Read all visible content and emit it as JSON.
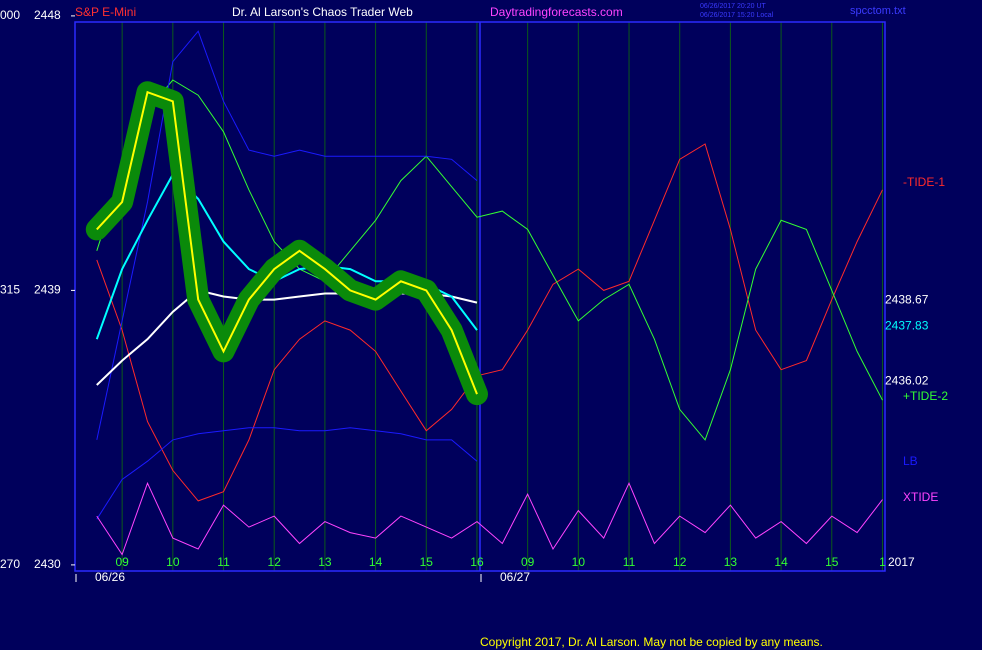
{
  "chart_data": {
    "type": "line",
    "symbol": "S&P E-Mini",
    "title": "Dr. Al Larson's Chaos Trader Web",
    "website": "Daytradingforecasts.com",
    "timestamps": [
      "06/26/2017 20:20 UT",
      "06/26/2017 15:20 Local"
    ],
    "filename": "spcctom.txt",
    "copyright": "Copyright 2017, Dr. Al Larson. May not be copied by any means.",
    "x": [
      -0.5,
      0,
      0.5,
      1,
      1.5,
      2,
      2.5,
      3,
      3.5,
      4,
      4.5,
      5,
      5.5,
      6,
      6.5,
      7,
      7.5,
      8,
      8.5,
      9,
      9.5,
      10,
      10.5,
      11,
      11.5,
      12,
      12.5,
      13,
      13.5,
      14,
      14.5,
      15
    ],
    "xlim": [
      -0.93,
      15.05
    ],
    "xticks": [
      {
        "value": 0,
        "label": "09"
      },
      {
        "value": 1,
        "label": "10"
      },
      {
        "value": 2,
        "label": "11"
      },
      {
        "value": 3,
        "label": "12"
      },
      {
        "value": 4,
        "label": "13"
      },
      {
        "value": 5,
        "label": "14"
      },
      {
        "value": 6,
        "label": "15"
      },
      {
        "value": 7,
        "label": "16"
      },
      {
        "value": 8,
        "label": "09"
      },
      {
        "value": 9,
        "label": "10"
      },
      {
        "value": 10,
        "label": "11"
      },
      {
        "value": 11,
        "label": "12"
      },
      {
        "value": 12,
        "label": "13"
      },
      {
        "value": 13,
        "label": "14"
      },
      {
        "value": 14,
        "label": "15"
      },
      {
        "value": 15,
        "label": "1"
      }
    ],
    "date_labels": [
      "06/26",
      "06/27"
    ],
    "year_label": "2017",
    "ylim": [
      2429.8,
      2447.8
    ],
    "yticks": [
      2430,
      2439,
      2448
    ],
    "clipped_labels": [
      "270",
      "315",
      "000"
    ],
    "last_values": [
      2438.67,
      2437.83,
      2436.02
    ],
    "y2lim": [
      0,
      100
    ],
    "series": [
      {
        "name": "-TIDE-1",
        "color": "#ff2a2a",
        "values": [
          2440.0,
          2437.7,
          2434.7,
          2433.1,
          2432.1,
          2432.4,
          2434.1,
          2436.4,
          2437.4,
          2438.0,
          2437.7,
          2437.0,
          2435.7,
          2434.4,
          2435.1,
          2436.2,
          2436.4,
          2437.7,
          2439.2,
          2439.7,
          2439.0,
          2439.3,
          2441.3,
          2443.3,
          2443.8,
          2441.0,
          2437.7,
          2436.4,
          2436.7,
          2438.7,
          2440.6,
          2442.3
        ]
      },
      {
        "name": "+TIDE-2",
        "color": "#33ff33",
        "values": [
          2440.3,
          2442.9,
          2444.9,
          2445.9,
          2445.4,
          2444.2,
          2442.3,
          2440.6,
          2439.7,
          2439.3,
          2440.3,
          2441.3,
          2442.6,
          2443.4,
          2442.4,
          2441.4,
          2441.6,
          2441.0,
          2439.5,
          2438.0,
          2438.7,
          2439.2,
          2437.4,
          2435.1,
          2434.1,
          2436.4,
          2439.7,
          2441.3,
          2441.0,
          2439.0,
          2437.0,
          2435.4
        ]
      },
      {
        "name": "LB",
        "color": "#1a1aff",
        "values": [
          2434.1,
          2438.0,
          2441.9,
          2446.5,
          2447.5,
          2445.2,
          2443.6,
          2443.4,
          2443.6,
          2443.4,
          2443.4,
          2443.4,
          2443.4,
          2443.4,
          2443.3,
          2442.6,
          null,
          null,
          null,
          null,
          null,
          null,
          null,
          null,
          null,
          null,
          null,
          null,
          null,
          null,
          null,
          null
        ]
      },
      {
        "color": "#1a1aff",
        "values": [
          2431.5,
          2432.8,
          2433.4,
          2434.1,
          2434.3,
          2434.4,
          2434.5,
          2434.5,
          2434.4,
          2434.4,
          2434.5,
          2434.4,
          2434.3,
          2434.1,
          2434.1,
          2433.4,
          null,
          null,
          null,
          null,
          null,
          null,
          null,
          null,
          null,
          null,
          null,
          null,
          null,
          null,
          null,
          null
        ]
      },
      {
        "name": "XTIDE",
        "color": "#ff44ff",
        "axis": "y2",
        "values": [
          10,
          3,
          16,
          6,
          4,
          12,
          8,
          10,
          5,
          9,
          7,
          6,
          10,
          8,
          6,
          9,
          5,
          14,
          4,
          11,
          6,
          16,
          5,
          10,
          7,
          12,
          6,
          9,
          5,
          10,
          7,
          13
        ]
      },
      {
        "color": "#ffffff",
        "values": [
          2435.9,
          2436.7,
          2437.4,
          2438.3,
          2439.0,
          2438.8,
          2438.7,
          2438.7,
          2438.8,
          2438.9,
          2438.9,
          2438.9,
          2438.9,
          2438.9,
          2438.8,
          2438.6,
          null,
          null,
          null,
          null,
          null,
          null,
          null,
          null,
          null,
          null,
          null,
          null,
          null,
          null,
          null,
          null
        ]
      },
      {
        "color": "#00ffff",
        "values": [
          2437.4,
          2439.7,
          2441.3,
          2442.8,
          2442.0,
          2440.6,
          2439.7,
          2439.3,
          2439.7,
          2439.8,
          2439.7,
          2439.3,
          2439.3,
          2439.2,
          2438.8,
          2437.7,
          null,
          null,
          null,
          null,
          null,
          null,
          null,
          null,
          null,
          null,
          null,
          null,
          null,
          null,
          null,
          null
        ]
      },
      {
        "color": "#ffff00",
        "halo": "#0a8a0a",
        "values": [
          2441.0,
          2441.9,
          2445.5,
          2445.2,
          2438.7,
          2437.0,
          2438.7,
          2439.7,
          2440.3,
          2439.7,
          2439.0,
          2438.7,
          2439.3,
          2439.0,
          2437.7,
          2435.6,
          null,
          null,
          null,
          null,
          null,
          null,
          null,
          null,
          null,
          null,
          null,
          null,
          null,
          null,
          null,
          null
        ]
      }
    ]
  }
}
